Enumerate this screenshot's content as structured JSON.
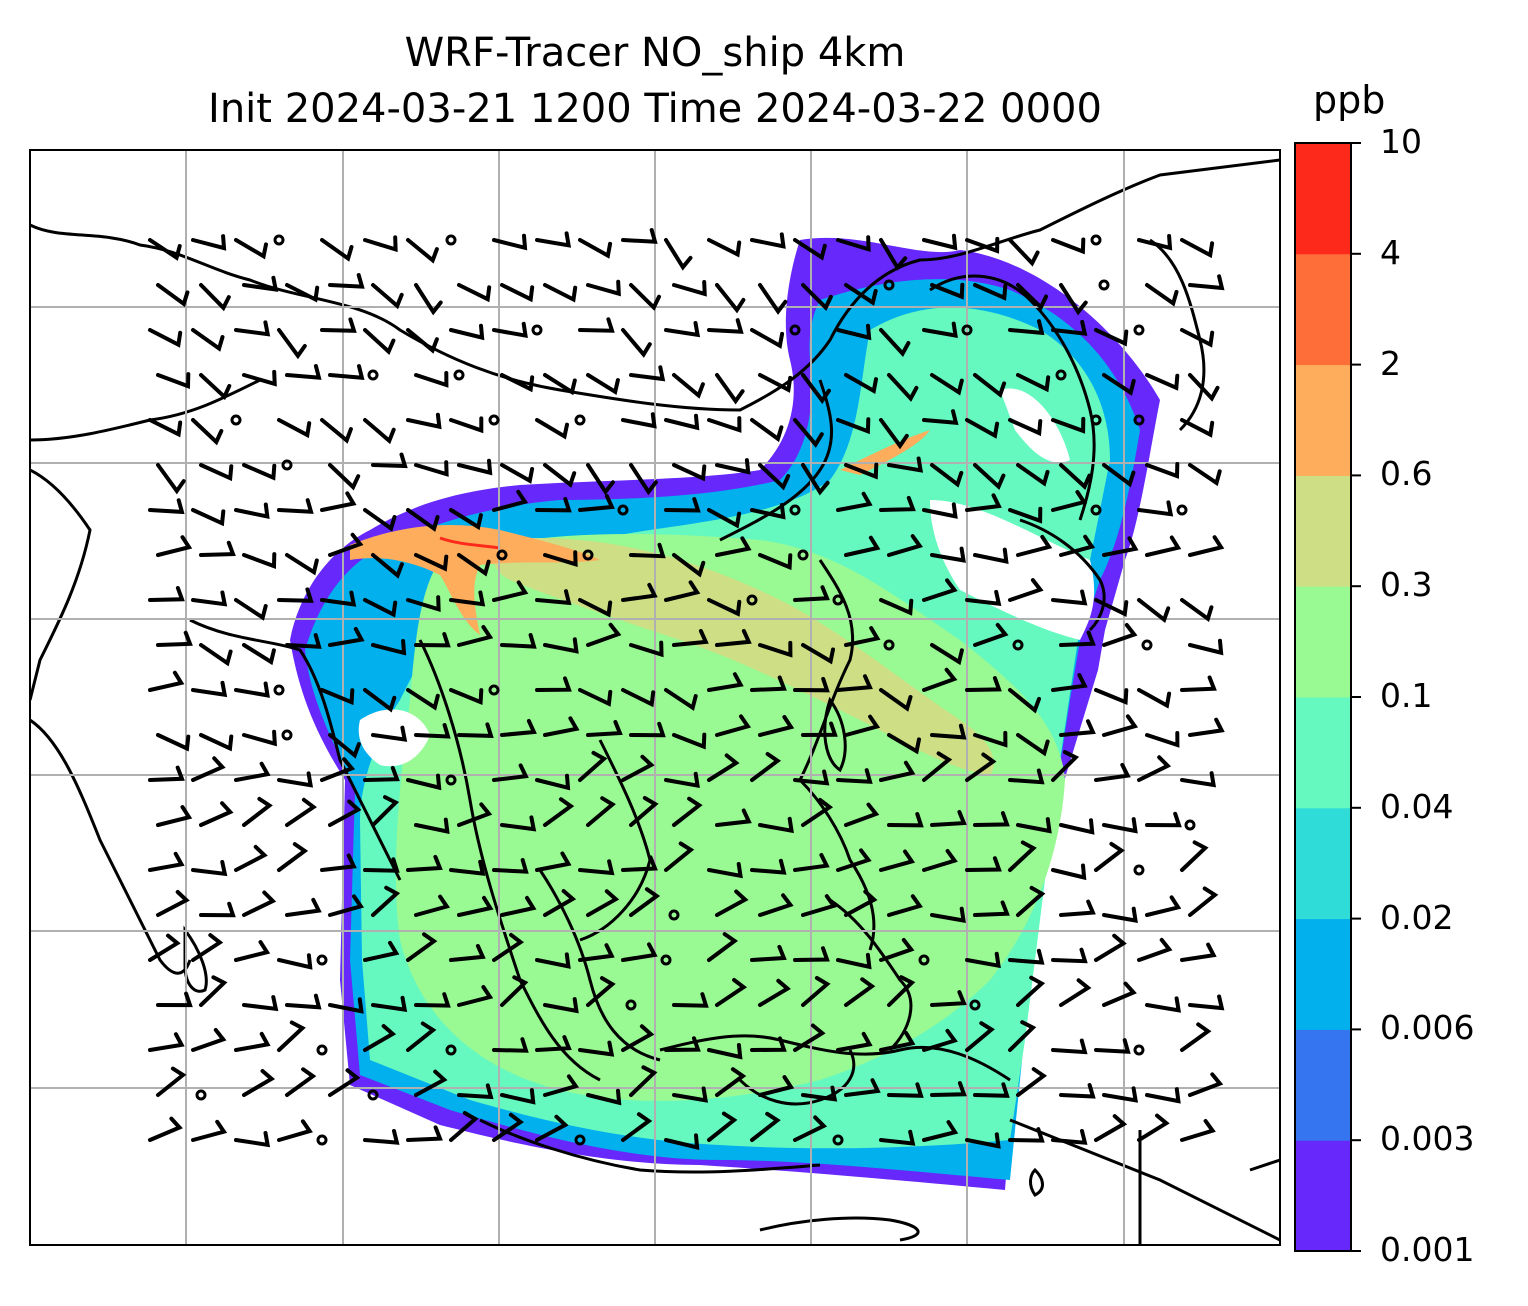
{
  "title": {
    "line1": "WRF-Tracer NO_ship 4km",
    "line2": "Init 2024-03-21 1200 Time 2024-03-22 0000"
  },
  "colorbar": {
    "unit": "ppb",
    "levels": [
      "0.001",
      "0.003",
      "0.006",
      "0.02",
      "0.04",
      "0.1",
      "0.3",
      "0.6",
      "2",
      "4",
      "10"
    ],
    "colors": [
      "#6628fb",
      "#3575f0",
      "#02b0ee",
      "#2fdcd7",
      "#65f9c0",
      "#99f993",
      "#cede84",
      "#fdad5b",
      "#fe6e39",
      "#fd2a1b"
    ]
  },
  "map": {
    "grid": "on",
    "overlays": [
      "coastlines",
      "country-borders",
      "wind-barbs"
    ],
    "plume_colors": {
      "edge": "#6628fb",
      "outer": "#02b0ee",
      "body": "#65f9c0",
      "core": "#99f993",
      "peak": "#cede84",
      "hotspot": "#fdad5b",
      "max": "#fd2a1b"
    }
  }
}
